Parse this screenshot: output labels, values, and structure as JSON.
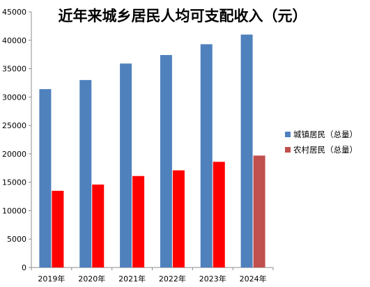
{
  "chart_data": {
    "type": "bar",
    "title": "近年来城乡居民人均可支配收入（元）",
    "categories": [
      "2019年",
      "2020年",
      "2021年",
      "2022年",
      "2023年",
      "2024年"
    ],
    "series": [
      {
        "name": "城镇居民（总量）",
        "values": [
          31400,
          33000,
          35900,
          37400,
          39300,
          41000
        ],
        "colors": [
          "#4f81bd",
          "#4f81bd",
          "#4f81bd",
          "#4f81bd",
          "#4f81bd",
          "#4f81bd"
        ]
      },
      {
        "name": "农村居民（总量）",
        "values": [
          13500,
          14600,
          16100,
          17100,
          18600,
          19700
        ],
        "colors": [
          "#ff0000",
          "#ff0000",
          "#ff0000",
          "#ff0000",
          "#ff0000",
          "#c0504d"
        ]
      }
    ],
    "legend_colors": [
      "#4f81bd",
      "#c0504d"
    ],
    "yticks": [
      "0",
      "5000",
      "10000",
      "15000",
      "20000",
      "25000",
      "30000",
      "35000",
      "40000",
      "45000"
    ],
    "ylim": [
      0,
      45000
    ],
    "ystep": 5000,
    "xlabel": "",
    "ylabel": "",
    "grid": false,
    "legend_position": "right"
  }
}
